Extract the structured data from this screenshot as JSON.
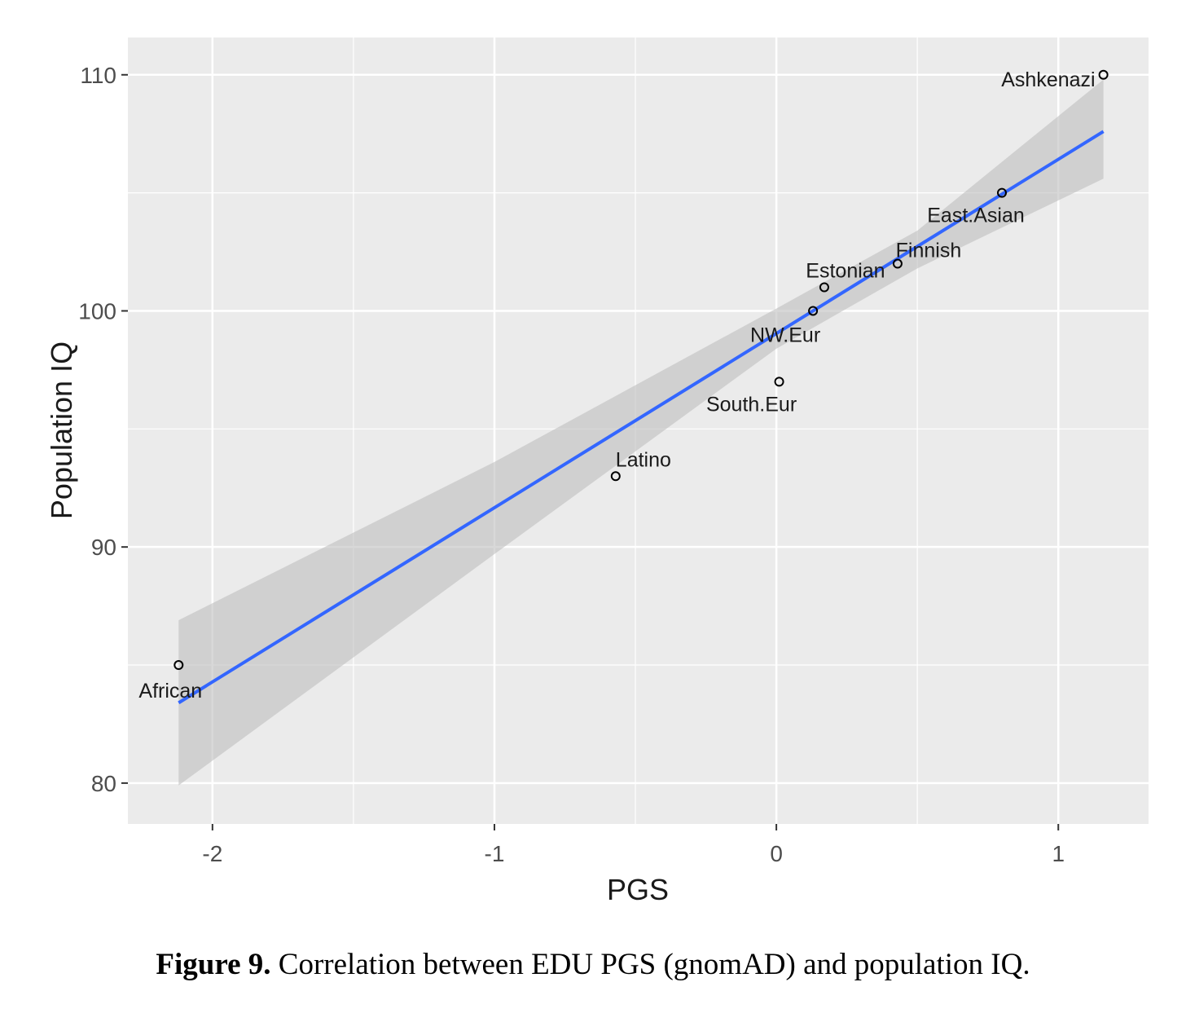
{
  "chart_data": {
    "type": "scatter",
    "xlabel": "PGS",
    "ylabel": "Population IQ",
    "xlim": [
      -2.3,
      1.32
    ],
    "ylim": [
      78.27,
      111.58
    ],
    "x_ticks": [
      -2,
      -1,
      0,
      1
    ],
    "y_ticks": [
      80,
      90,
      100,
      110
    ],
    "x_tick_labels": [
      "-2",
      "-1",
      "0",
      "1"
    ],
    "y_tick_labels": [
      "80",
      "90",
      "100",
      "110"
    ],
    "grid": true,
    "points": [
      {
        "label": "African",
        "x": -2.12,
        "y": 85
      },
      {
        "label": "Latino",
        "x": -0.57,
        "y": 93
      },
      {
        "label": "South.Eur",
        "x": 0.01,
        "y": 97
      },
      {
        "label": "NW.Eur",
        "x": 0.13,
        "y": 100
      },
      {
        "label": "Estonian",
        "x": 0.17,
        "y": 101
      },
      {
        "label": "Finnish",
        "x": 0.43,
        "y": 102
      },
      {
        "label": "East.Asian",
        "x": 0.8,
        "y": 105
      },
      {
        "label": "Ashkenazi",
        "x": 1.16,
        "y": 110
      }
    ],
    "fit_line": {
      "x": [
        -2.12,
        1.16
      ],
      "y": [
        83.4,
        107.6
      ]
    },
    "confidence_band": {
      "x": [
        -2.12,
        -1.0,
        0.0,
        0.5,
        1.16
      ],
      "lower": [
        79.9,
        89.7,
        98.4,
        101.8,
        105.6
      ],
      "upper": [
        86.9,
        93.6,
        100.1,
        103.4,
        109.8
      ]
    }
  },
  "caption": {
    "label": "Figure 9.",
    "text": " Correlation between EDU PGS (gnomAD) and population IQ."
  }
}
